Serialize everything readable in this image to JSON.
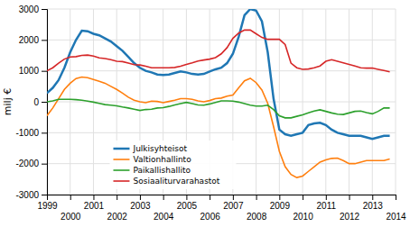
{
  "chart_data": {
    "type": "line",
    "y_label": "milj €",
    "x": [
      1999.0,
      1999.25,
      1999.5,
      1999.75,
      2000.0,
      2000.25,
      2000.5,
      2000.75,
      2001.0,
      2001.25,
      2001.5,
      2001.75,
      2002.0,
      2002.25,
      2002.5,
      2002.75,
      2003.0,
      2003.25,
      2003.5,
      2003.75,
      2004.0,
      2004.25,
      2004.5,
      2004.75,
      2005.0,
      2005.25,
      2005.5,
      2005.75,
      2006.0,
      2006.25,
      2006.5,
      2006.75,
      2007.0,
      2007.25,
      2007.5,
      2007.75,
      2008.0,
      2008.25,
      2008.5,
      2008.75,
      2009.0,
      2009.25,
      2009.5,
      2009.75,
      2010.0,
      2010.25,
      2010.5,
      2010.75,
      2011.0,
      2011.25,
      2011.5,
      2011.75,
      2012.0,
      2012.25,
      2012.5,
      2012.75,
      2013.0,
      2013.25,
      2013.5,
      2013.75
    ],
    "series": [
      {
        "name": "Julkisyhteisot",
        "values": [
          280,
          450,
          700,
          1100,
          1600,
          2000,
          2300,
          2280,
          2200,
          2150,
          2050,
          1950,
          1800,
          1650,
          1450,
          1250,
          1100,
          1000,
          950,
          880,
          870,
          880,
          930,
          980,
          950,
          900,
          880,
          900,
          980,
          1050,
          1100,
          1250,
          1550,
          2100,
          2800,
          3000,
          2950,
          2600,
          1600,
          100,
          -900,
          -1050,
          -1100,
          -1050,
          -1000,
          -750,
          -700,
          -680,
          -750,
          -900,
          -1000,
          -1050,
          -1100,
          -1100,
          -1100,
          -1150,
          -1200,
          -1150,
          -1100,
          -1100
        ]
      },
      {
        "name": "Valtionhallinto",
        "values": [
          -450,
          -200,
          100,
          400,
          600,
          750,
          800,
          780,
          720,
          660,
          600,
          500,
          400,
          280,
          150,
          50,
          0,
          -30,
          20,
          10,
          -30,
          10,
          50,
          100,
          100,
          80,
          30,
          0,
          40,
          100,
          120,
          180,
          220,
          450,
          680,
          760,
          620,
          380,
          -50,
          -800,
          -1600,
          -2100,
          -2350,
          -2450,
          -2400,
          -2250,
          -2100,
          -1950,
          -1880,
          -1830,
          -1820,
          -1900,
          -2000,
          -2000,
          -1950,
          -1900,
          -1900,
          -1900,
          -1900,
          -1850
        ]
      },
      {
        "name": "Paikallishallito",
        "values": [
          0,
          30,
          80,
          80,
          80,
          70,
          50,
          20,
          -10,
          -50,
          -90,
          -110,
          -130,
          -170,
          -200,
          -240,
          -280,
          -250,
          -240,
          -200,
          -190,
          -150,
          -100,
          -60,
          -20,
          -60,
          -100,
          -110,
          -70,
          -20,
          30,
          30,
          20,
          -10,
          -60,
          -110,
          -140,
          -140,
          -110,
          -250,
          -450,
          -520,
          -520,
          -470,
          -420,
          -360,
          -300,
          -260,
          -310,
          -360,
          -400,
          -410,
          -360,
          -310,
          -300,
          -350,
          -390,
          -310,
          -200,
          -200
        ]
      },
      {
        "name": "Sosiaaliturvarahastot",
        "values": [
          1000,
          1100,
          1250,
          1380,
          1450,
          1460,
          1500,
          1510,
          1480,
          1420,
          1400,
          1360,
          1310,
          1300,
          1250,
          1200,
          1190,
          1150,
          1100,
          1100,
          1100,
          1100,
          1110,
          1150,
          1210,
          1260,
          1320,
          1350,
          1380,
          1430,
          1550,
          1750,
          2050,
          2220,
          2320,
          2320,
          2200,
          2080,
          2020,
          2020,
          2020,
          1850,
          1250,
          1100,
          1050,
          1060,
          1100,
          1160,
          1310,
          1360,
          1310,
          1260,
          1210,
          1160,
          1100,
          1090,
          1090,
          1050,
          1010,
          970
        ]
      }
    ],
    "xlim": [
      1999.0,
      2014.0
    ],
    "xticks": [
      1999,
      2000,
      2001,
      2002,
      2003,
      2004,
      2005,
      2006,
      2007,
      2008,
      2009,
      2010,
      2011,
      2012,
      2013,
      2014
    ],
    "ylim": [
      -3000,
      3000
    ],
    "yticks": [
      -3000,
      -2000,
      -1000,
      0,
      1000,
      2000,
      3000
    ],
    "grid": true,
    "legend": "lower left"
  }
}
